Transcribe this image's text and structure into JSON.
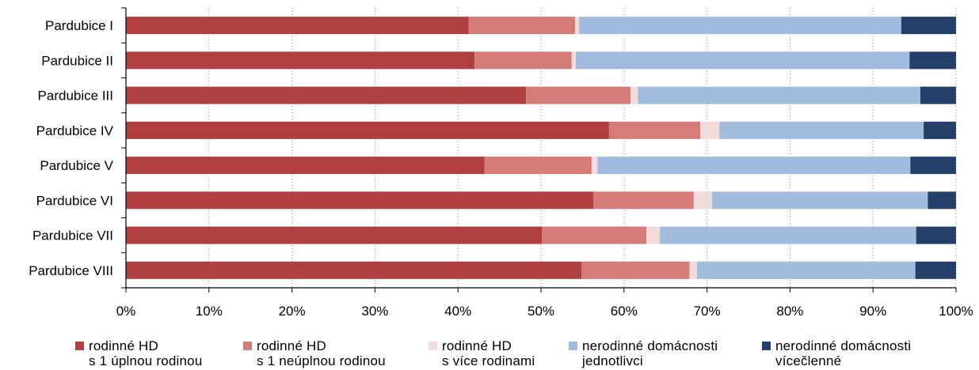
{
  "chart_data": {
    "type": "bar",
    "orientation": "horizontal",
    "stacked": "percent",
    "categories": [
      "Pardubice I",
      "Pardubice II",
      "Pardubice III",
      "Pardubice IV",
      "Pardubice V",
      "Pardubice VI",
      "Pardubice VII",
      "Pardubice VIII"
    ],
    "series": [
      {
        "name": "rodinné HD s 1 úplnou rodinou",
        "name_lines": [
          "rodinné HD",
          "s 1 úplnou rodinou"
        ],
        "color": "#b0403f",
        "values": [
          41.3,
          42.0,
          48.2,
          58.2,
          43.2,
          56.3,
          50.1,
          54.9
        ]
      },
      {
        "name": "rodinné HD s 1 neúplnou rodinou",
        "name_lines": [
          "rodinné HD",
          "s 1 neúplnou rodinou"
        ],
        "color": "#d57b78",
        "values": [
          12.8,
          11.7,
          12.6,
          11.0,
          12.9,
          12.1,
          12.6,
          13.0
        ]
      },
      {
        "name": "rodinné HD s více rodinami",
        "name_lines": [
          "rodinné HD",
          "s více rodinami"
        ],
        "color": "#f2dcdb",
        "values": [
          0.5,
          0.5,
          0.9,
          2.3,
          0.7,
          2.2,
          1.6,
          0.9
        ]
      },
      {
        "name": "nerodinné domácnosti jednotlivci",
        "name_lines": [
          "nerodinné domácnosti",
          "jednotlivci"
        ],
        "color": "#a1bcde",
        "values": [
          38.8,
          40.2,
          34.0,
          24.6,
          37.7,
          26.0,
          30.9,
          26.3
        ]
      },
      {
        "name": "nerodinné domácnosti vícečlenné",
        "name_lines": [
          "nerodinné domácnosti",
          "vícečlenné"
        ],
        "color": "#24406a",
        "values": [
          6.6,
          5.6,
          4.3,
          3.9,
          5.5,
          3.4,
          4.8,
          4.9
        ]
      }
    ],
    "x_ticks": [
      "0%",
      "10%",
      "20%",
      "30%",
      "40%",
      "50%",
      "60%",
      "70%",
      "80%",
      "90%",
      "100%"
    ],
    "xlim": [
      0,
      100
    ],
    "grid": "vertical dotted",
    "legend": "bottom"
  }
}
